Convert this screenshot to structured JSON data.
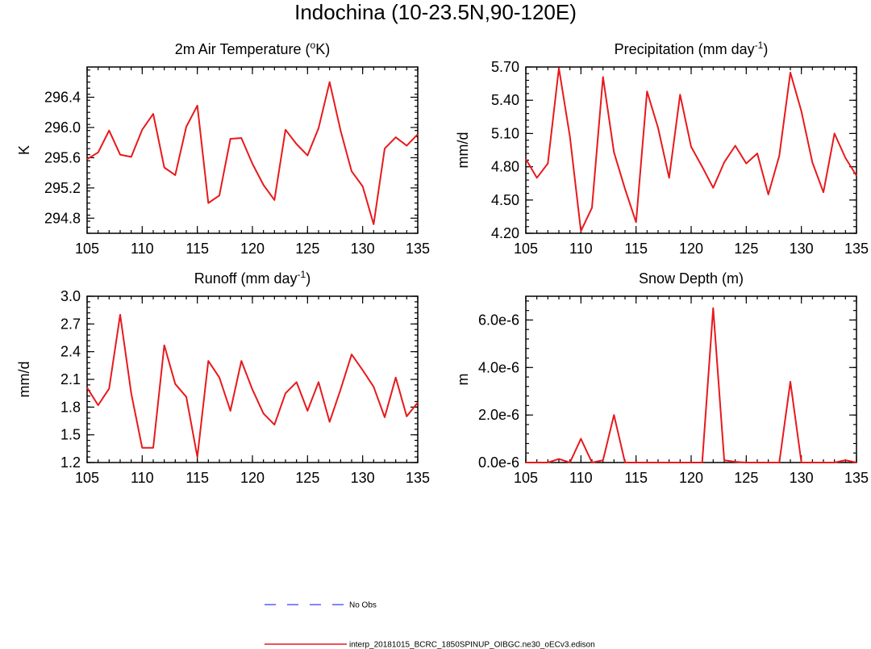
{
  "title": "Indochina (10-23.5N,90-120E)",
  "colors": {
    "model": "#e8191c",
    "obs": "#5a5aff"
  },
  "legend": [
    {
      "label": "No Obs",
      "style": "dashed",
      "color": "#5a5aff"
    },
    {
      "label": "interp_20181015_BCRC_1850SPINUP_OIBGC.ne30_oECv3.edison",
      "style": "solid",
      "color": "#e8191c"
    }
  ],
  "chart_data": [
    {
      "type": "line",
      "title_main": "2m Air Temperature (",
      "title_sup_pre": "o",
      "title_tail": "K)",
      "ylabel": "K",
      "xlim": [
        105,
        135
      ],
      "ylim": [
        294.6,
        296.8
      ],
      "xticks": [
        105,
        110,
        115,
        120,
        125,
        130,
        135
      ],
      "xtick_labels": [
        "105",
        "110",
        "115",
        "120",
        "125",
        "130",
        "135"
      ],
      "yticks": [
        294.8,
        295.2,
        295.6,
        296.0,
        296.4
      ],
      "ytick_labels": [
        "294.8",
        "295.2",
        "295.6",
        "296.0",
        "296.4"
      ],
      "series": [
        {
          "x": [
            105,
            106,
            107,
            108,
            109,
            110,
            111,
            112,
            113,
            114,
            115,
            116,
            117,
            118,
            119,
            120,
            121,
            122,
            123,
            124,
            125,
            126,
            127,
            128,
            129,
            130,
            131,
            132,
            133,
            134,
            135
          ],
          "values": [
            295.58,
            295.67,
            295.96,
            295.64,
            295.61,
            295.97,
            296.18,
            295.47,
            295.37,
            296.01,
            296.29,
            295.0,
            295.1,
            295.85,
            295.86,
            295.52,
            295.24,
            295.04,
            295.97,
            295.78,
            295.63,
            295.99,
            296.6,
            295.96,
            295.42,
            295.22,
            294.72,
            295.72,
            295.87,
            295.76,
            295.91
          ]
        }
      ]
    },
    {
      "type": "line",
      "title_main": "Precipitation (mm day",
      "title_sup": "-1",
      "title_tail": ")",
      "ylabel": "mm/d",
      "xlim": [
        105,
        135
      ],
      "ylim": [
        4.2,
        5.7
      ],
      "xticks": [
        105,
        110,
        115,
        120,
        125,
        130,
        135
      ],
      "xtick_labels": [
        "105",
        "110",
        "115",
        "120",
        "125",
        "130",
        "135"
      ],
      "yticks": [
        4.2,
        4.5,
        4.8,
        5.1,
        5.4,
        5.7
      ],
      "ytick_labels": [
        "4.20",
        "4.50",
        "4.80",
        "5.10",
        "5.40",
        "5.70"
      ],
      "series": [
        {
          "x": [
            105,
            106,
            107,
            108,
            109,
            110,
            111,
            112,
            113,
            114,
            115,
            116,
            117,
            118,
            119,
            120,
            121,
            122,
            123,
            124,
            125,
            126,
            127,
            128,
            129,
            130,
            131,
            132,
            133,
            134,
            135
          ],
          "values": [
            4.87,
            4.7,
            4.83,
            5.69,
            5.07,
            4.22,
            4.43,
            5.61,
            4.93,
            4.6,
            4.3,
            5.48,
            5.15,
            4.7,
            5.45,
            4.98,
            4.8,
            4.61,
            4.84,
            4.99,
            4.83,
            4.92,
            4.55,
            4.9,
            5.65,
            5.3,
            4.84,
            4.57,
            5.1,
            4.88,
            4.72
          ]
        }
      ]
    },
    {
      "type": "line",
      "title_main": "Runoff (mm day",
      "title_sup": "-1",
      "title_tail": ")",
      "ylabel": "mm/d",
      "xlim": [
        105,
        135
      ],
      "ylim": [
        1.2,
        3.0
      ],
      "xticks": [
        105,
        110,
        115,
        120,
        125,
        130,
        135
      ],
      "xtick_labels": [
        "105",
        "110",
        "115",
        "120",
        "125",
        "130",
        "135"
      ],
      "yticks": [
        1.2,
        1.5,
        1.8,
        2.1,
        2.4,
        2.7,
        3.0
      ],
      "ytick_labels": [
        "1.2",
        "1.5",
        "1.8",
        "2.1",
        "2.4",
        "2.7",
        "3.0"
      ],
      "series": [
        {
          "x": [
            105,
            106,
            107,
            108,
            109,
            110,
            111,
            112,
            113,
            114,
            115,
            116,
            117,
            118,
            119,
            120,
            121,
            122,
            123,
            124,
            125,
            126,
            127,
            128,
            129,
            130,
            131,
            132,
            133,
            134,
            135
          ],
          "values": [
            2.01,
            1.82,
            2.0,
            2.8,
            1.95,
            1.36,
            1.36,
            2.47,
            2.05,
            1.91,
            1.26,
            2.3,
            2.12,
            1.76,
            2.3,
            1.99,
            1.73,
            1.61,
            1.95,
            2.07,
            1.76,
            2.07,
            1.64,
            1.99,
            2.37,
            2.2,
            2.02,
            1.69,
            2.12,
            1.7,
            1.85
          ]
        }
      ]
    },
    {
      "type": "line",
      "title_main": "Snow Depth (m)",
      "ylabel": "m",
      "xlim": [
        105,
        135
      ],
      "ylim": [
        0,
        7e-06
      ],
      "xticks": [
        105,
        110,
        115,
        120,
        125,
        130,
        135
      ],
      "xtick_labels": [
        "105",
        "110",
        "115",
        "120",
        "125",
        "130",
        "135"
      ],
      "yticks": [
        0,
        2e-06,
        4e-06,
        6e-06
      ],
      "ytick_labels": [
        "0.0e-6",
        "2.0e-6",
        "4.0e-6",
        "6.0e-6"
      ],
      "series": [
        {
          "x": [
            105,
            106,
            107,
            108,
            109,
            110,
            111,
            112,
            113,
            114,
            115,
            116,
            117,
            118,
            119,
            120,
            121,
            122,
            123,
            124,
            125,
            126,
            127,
            128,
            129,
            130,
            131,
            132,
            133,
            134,
            135
          ],
          "values": [
            0,
            0,
            0,
            1.5e-07,
            0,
            1e-06,
            0,
            1e-07,
            2e-06,
            0,
            0,
            0,
            0,
            0,
            0,
            0,
            0,
            6.5e-06,
            1e-07,
            3e-08,
            0,
            0,
            0,
            0,
            3.4e-06,
            0,
            0,
            0,
            0,
            1e-07,
            0
          ]
        }
      ]
    }
  ]
}
